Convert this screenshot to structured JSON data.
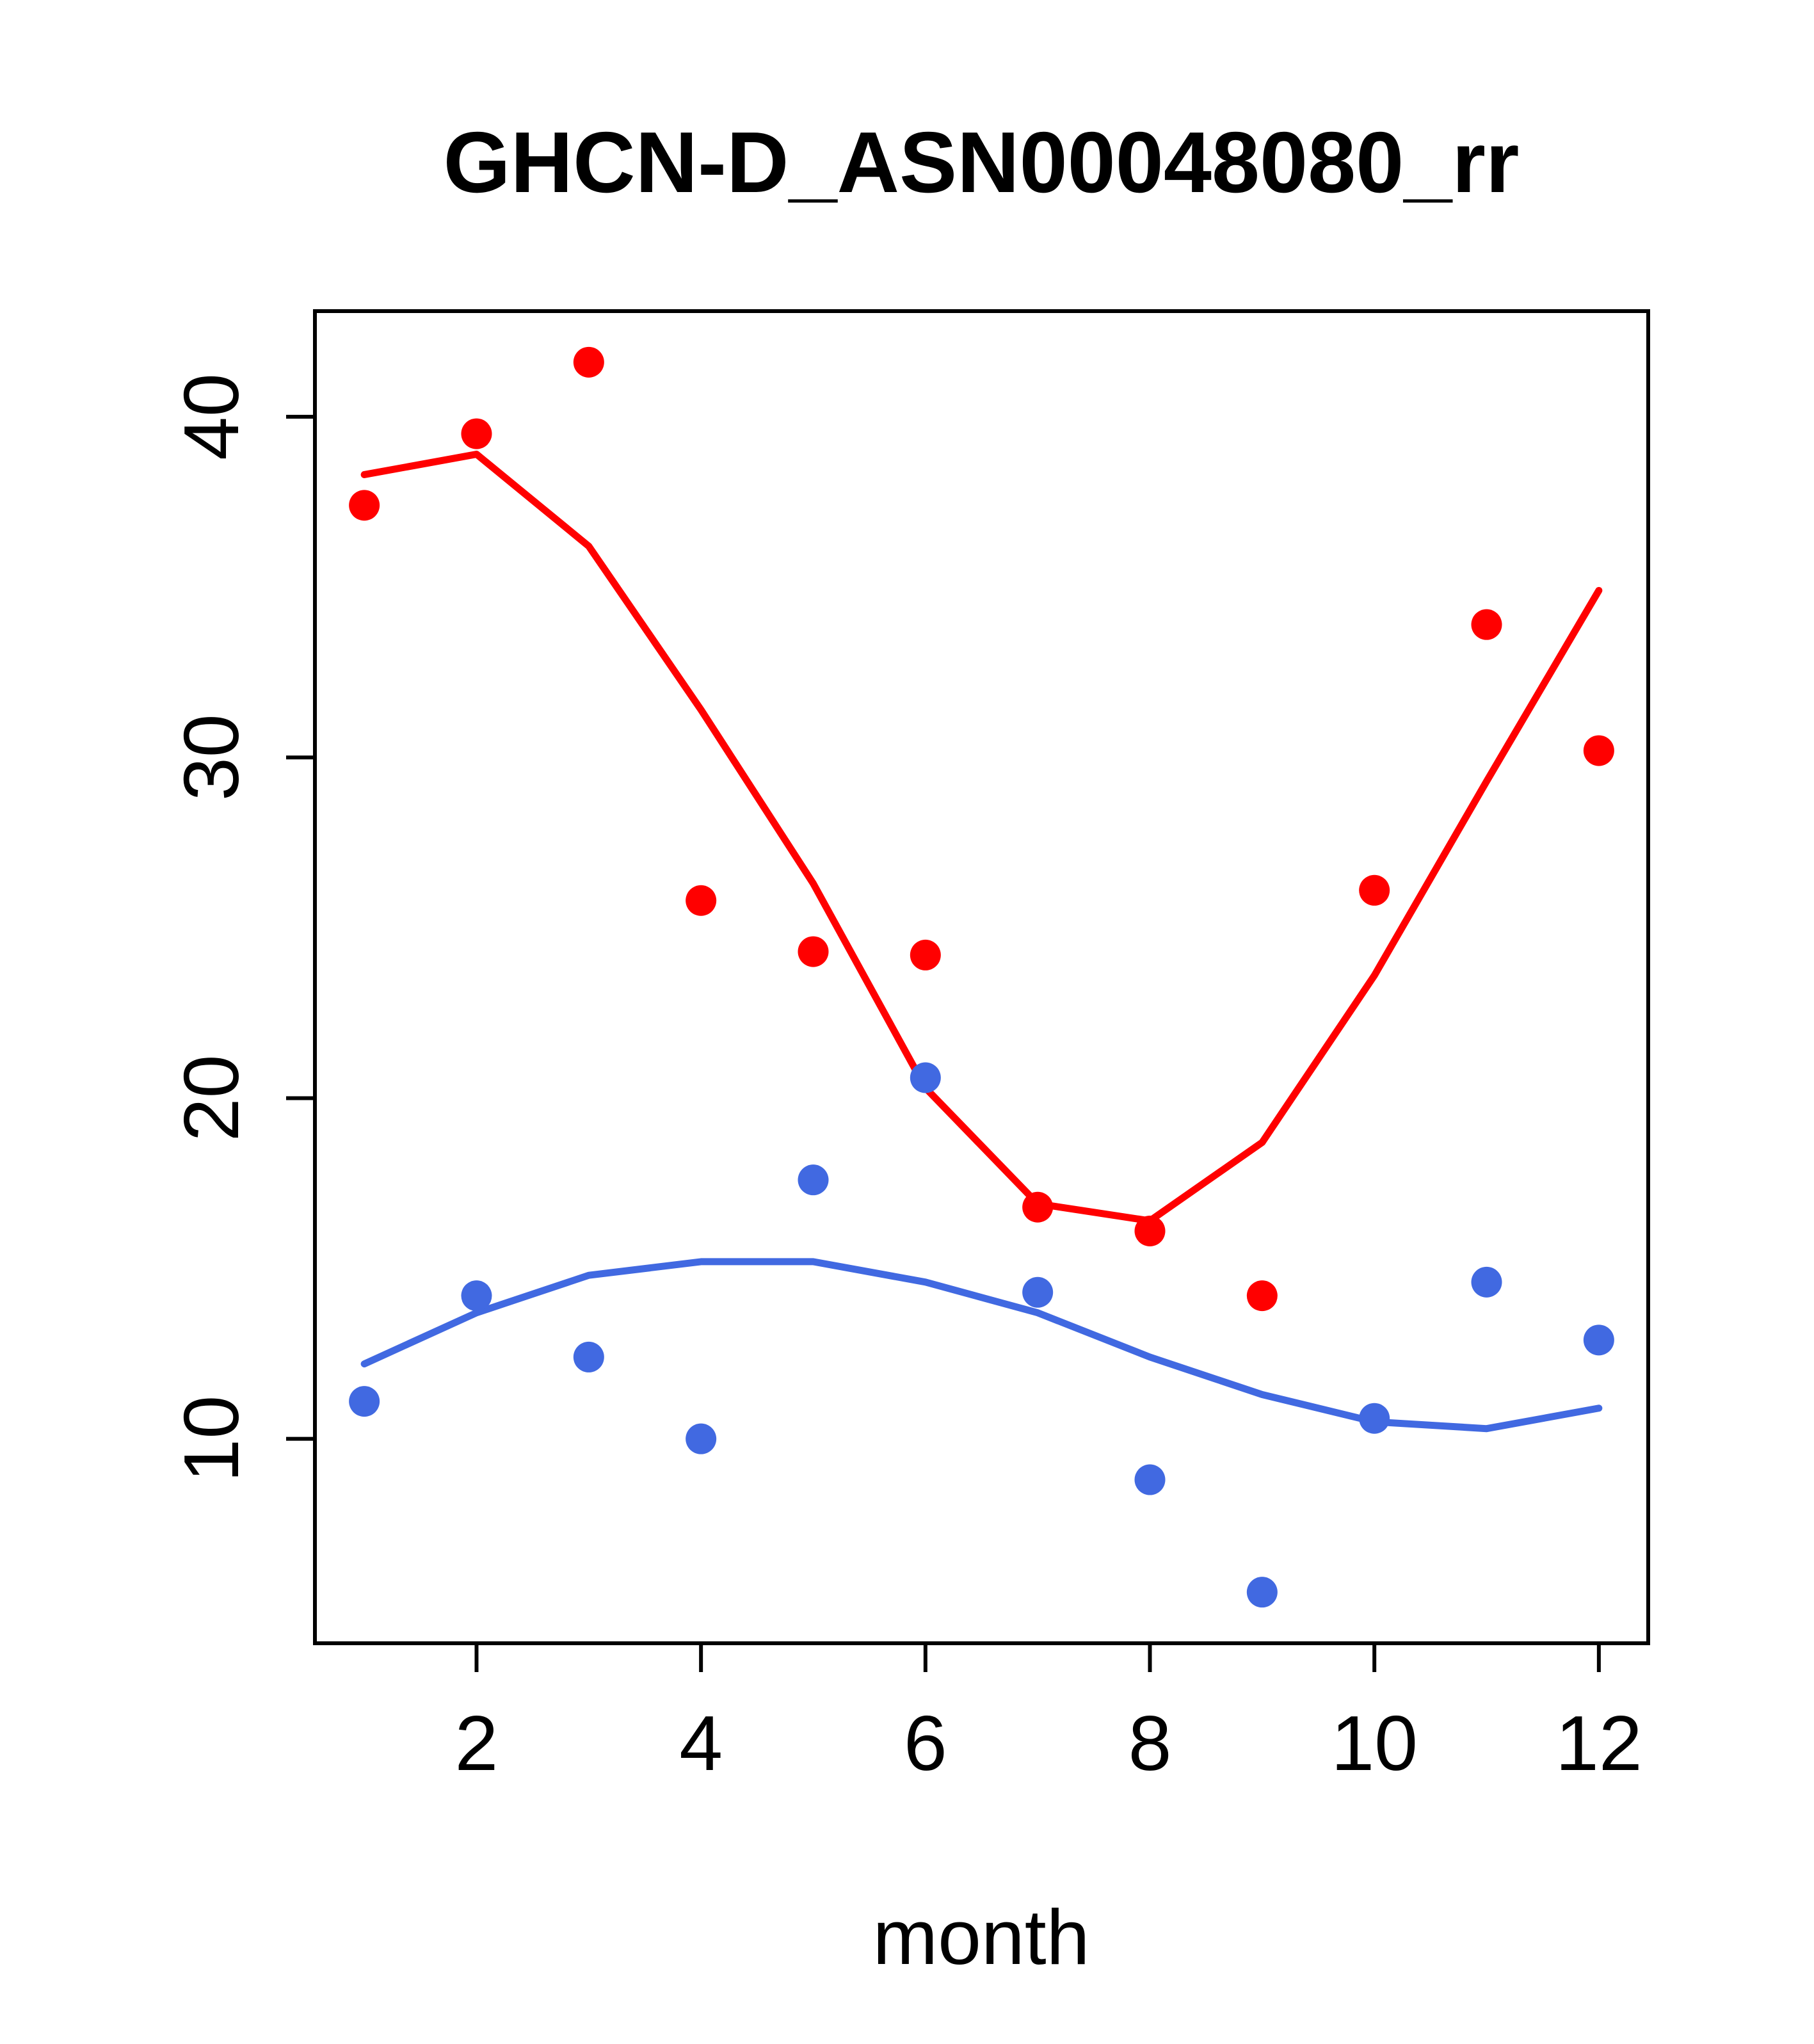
{
  "chart_data": {
    "type": "scatter",
    "title": "GHCN-D_ASN00048080_rr",
    "xlabel": "month",
    "ylabel": "",
    "x": [
      1,
      2,
      3,
      4,
      5,
      6,
      7,
      8,
      9,
      10,
      11,
      12
    ],
    "series": [
      {
        "name": "red-points",
        "kind": "scatter",
        "color": "#ff0000",
        "values": [
          37.4,
          39.5,
          41.6,
          25.8,
          24.3,
          24.2,
          16.8,
          16.1,
          14.2,
          26.1,
          33.9,
          30.2
        ]
      },
      {
        "name": "red-smooth-line",
        "kind": "line",
        "color": "#ff0000",
        "values": [
          38.3,
          38.9,
          36.2,
          31.4,
          26.3,
          20.3,
          16.9,
          16.4,
          18.7,
          23.6,
          29.3,
          34.9
        ]
      },
      {
        "name": "blue-points",
        "kind": "scatter",
        "color": "#4169e1",
        "values": [
          11.1,
          14.2,
          12.4,
          10.0,
          17.6,
          20.6,
          14.3,
          8.8,
          5.5,
          10.6,
          14.6,
          12.9
        ]
      },
      {
        "name": "blue-smooth-line",
        "kind": "line",
        "color": "#4169e1",
        "values": [
          12.2,
          13.7,
          14.8,
          15.2,
          15.2,
          14.6,
          13.7,
          12.4,
          11.3,
          10.5,
          10.3,
          10.9
        ]
      }
    ],
    "x_ticks": [
      2,
      4,
      6,
      8,
      10,
      12
    ],
    "y_ticks": [
      10,
      20,
      30,
      40
    ],
    "xlim": [
      0.56,
      12.44
    ],
    "ylim": [
      4.0,
      43.1
    ],
    "grid": false,
    "legend": "none",
    "colors": {
      "red_series": "#ff0000",
      "blue_series": "#4169e1",
      "axis": "#000000",
      "background": "#ffffff"
    }
  }
}
